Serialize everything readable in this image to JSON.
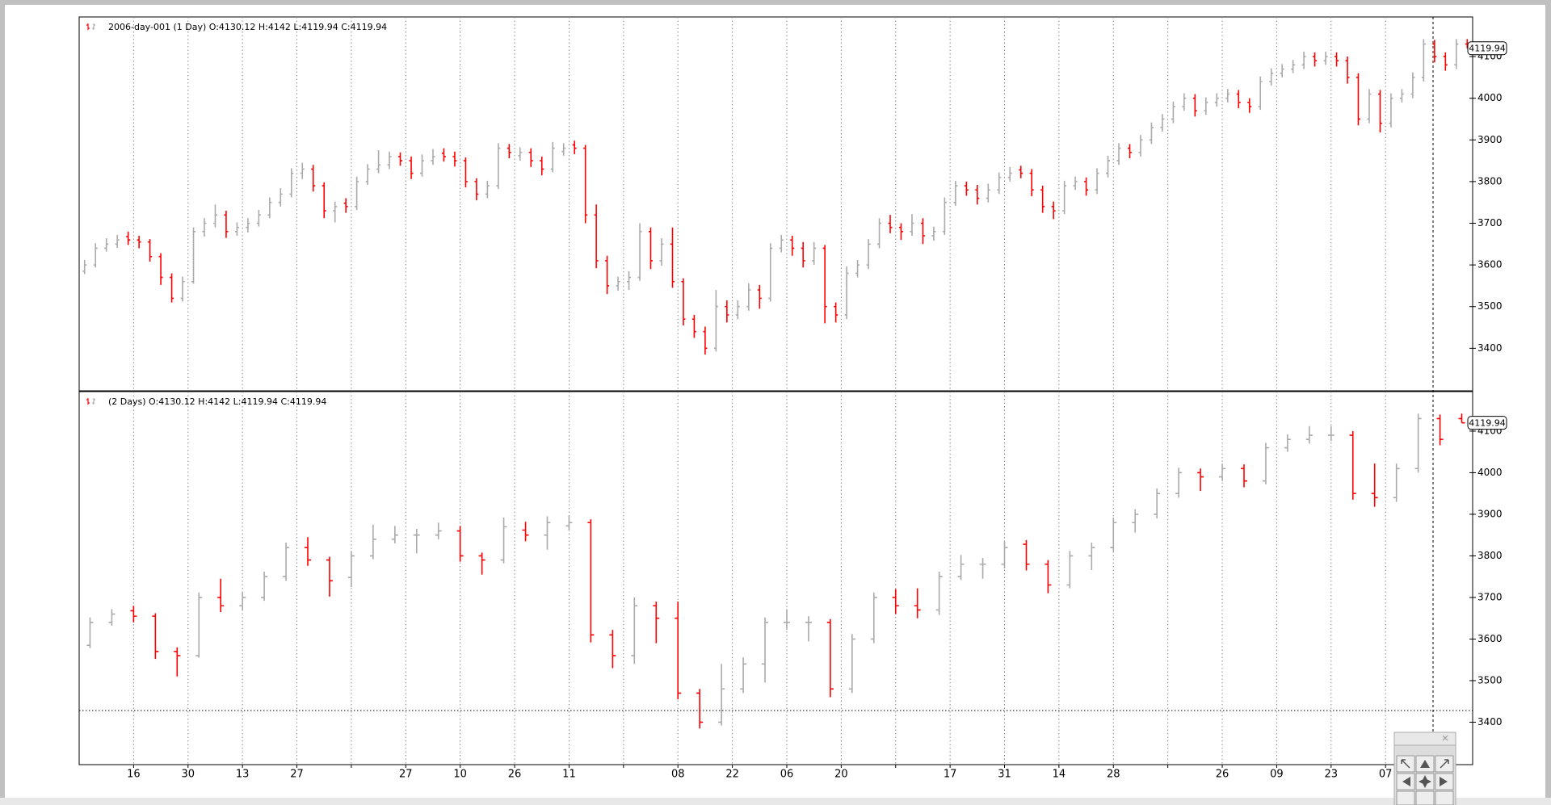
{
  "chart_data": [
    {
      "type": "ohlc",
      "legend": "2006-day-001 (1 Day) O:4130.12 H:4142 L:4119.94 C:4119.94",
      "up_color": "#aaaaaa",
      "down_color": "#ff0000",
      "xlim": [
        0,
        128
      ],
      "xticks": [
        5,
        10,
        15,
        20,
        25,
        30,
        35,
        40,
        45,
        50,
        55,
        60,
        65,
        70,
        75,
        80,
        85,
        90,
        95,
        100,
        105,
        110,
        115,
        120
      ],
      "xgrid": true,
      "ylim": [
        3298,
        4195
      ],
      "yticks": [
        3400,
        3500,
        3600,
        3700,
        3800,
        3900,
        4000,
        4100
      ],
      "ohlc": [
        [
          3585,
          3612,
          3578,
          3600
        ],
        [
          3600,
          3652,
          3594,
          3640
        ],
        [
          3640,
          3664,
          3632,
          3650
        ],
        [
          3650,
          3672,
          3641,
          3660
        ],
        [
          3668,
          3680,
          3648,
          3660
        ],
        [
          3660,
          3670,
          3640,
          3655
        ],
        [
          3655,
          3662,
          3608,
          3620
        ],
        [
          3620,
          3628,
          3552,
          3570
        ],
        [
          3570,
          3580,
          3510,
          3520
        ],
        [
          3520,
          3572,
          3512,
          3560
        ],
        [
          3560,
          3690,
          3555,
          3680
        ],
        [
          3680,
          3712,
          3668,
          3700
        ],
        [
          3700,
          3745,
          3690,
          3720
        ],
        [
          3720,
          3730,
          3665,
          3680
        ],
        [
          3680,
          3702,
          3670,
          3690
        ],
        [
          3690,
          3712,
          3678,
          3700
        ],
        [
          3700,
          3732,
          3692,
          3720
        ],
        [
          3720,
          3762,
          3712,
          3750
        ],
        [
          3750,
          3784,
          3740,
          3770
        ],
        [
          3770,
          3832,
          3762,
          3820
        ],
        [
          3820,
          3845,
          3806,
          3830
        ],
        [
          3830,
          3840,
          3776,
          3790
        ],
        [
          3790,
          3798,
          3712,
          3730
        ],
        [
          3730,
          3752,
          3702,
          3740
        ],
        [
          3748,
          3760,
          3725,
          3740
        ],
        [
          3740,
          3812,
          3732,
          3800
        ],
        [
          3800,
          3842,
          3792,
          3830
        ],
        [
          3830,
          3875,
          3820,
          3840
        ],
        [
          3840,
          3872,
          3830,
          3860
        ],
        [
          3860,
          3870,
          3838,
          3850
        ],
        [
          3850,
          3860,
          3806,
          3820
        ],
        [
          3820,
          3865,
          3812,
          3850
        ],
        [
          3850,
          3878,
          3840,
          3860
        ],
        [
          3868,
          3880,
          3848,
          3860
        ],
        [
          3860,
          3872,
          3836,
          3850
        ],
        [
          3850,
          3858,
          3786,
          3800
        ],
        [
          3800,
          3808,
          3755,
          3770
        ],
        [
          3770,
          3802,
          3760,
          3790
        ],
        [
          3790,
          3892,
          3782,
          3880
        ],
        [
          3880,
          3890,
          3856,
          3870
        ],
        [
          3862,
          3882,
          3850,
          3870
        ],
        [
          3870,
          3880,
          3835,
          3850
        ],
        [
          3850,
          3860,
          3815,
          3830
        ],
        [
          3830,
          3895,
          3822,
          3880
        ],
        [
          3872,
          3892,
          3862,
          3880
        ],
        [
          3888,
          3898,
          3866,
          3880
        ],
        [
          3880,
          3888,
          3700,
          3720
        ],
        [
          3720,
          3745,
          3592,
          3610
        ],
        [
          3610,
          3622,
          3530,
          3550
        ],
        [
          3550,
          3572,
          3538,
          3560
        ],
        [
          3560,
          3585,
          3540,
          3570
        ],
        [
          3570,
          3700,
          3562,
          3680
        ],
        [
          3680,
          3690,
          3590,
          3610
        ],
        [
          3610,
          3664,
          3598,
          3650
        ],
        [
          3650,
          3690,
          3545,
          3560
        ],
        [
          3560,
          3568,
          3455,
          3470
        ],
        [
          3470,
          3480,
          3425,
          3440
        ],
        [
          3440,
          3452,
          3385,
          3400
        ],
        [
          3400,
          3540,
          3392,
          3500
        ],
        [
          3500,
          3515,
          3462,
          3480
        ],
        [
          3480,
          3515,
          3470,
          3500
        ],
        [
          3500,
          3556,
          3490,
          3540
        ],
        [
          3540,
          3552,
          3495,
          3520
        ],
        [
          3520,
          3652,
          3512,
          3640
        ],
        [
          3640,
          3672,
          3630,
          3660
        ],
        [
          3660,
          3670,
          3622,
          3640
        ],
        [
          3640,
          3655,
          3594,
          3610
        ],
        [
          3610,
          3655,
          3600,
          3640
        ],
        [
          3640,
          3648,
          3460,
          3500
        ],
        [
          3500,
          3510,
          3462,
          3480
        ],
        [
          3480,
          3596,
          3470,
          3580
        ],
        [
          3580,
          3612,
          3570,
          3600
        ],
        [
          3600,
          3662,
          3590,
          3650
        ],
        [
          3650,
          3712,
          3640,
          3700
        ],
        [
          3700,
          3720,
          3676,
          3690
        ],
        [
          3690,
          3700,
          3660,
          3680
        ],
        [
          3680,
          3722,
          3670,
          3700
        ],
        [
          3700,
          3712,
          3650,
          3670
        ],
        [
          3670,
          3692,
          3658,
          3680
        ],
        [
          3680,
          3762,
          3672,
          3750
        ],
        [
          3750,
          3802,
          3742,
          3790
        ],
        [
          3790,
          3800,
          3766,
          3780
        ],
        [
          3780,
          3792,
          3745,
          3760
        ],
        [
          3760,
          3795,
          3750,
          3780
        ],
        [
          3780,
          3822,
          3770,
          3810
        ],
        [
          3810,
          3835,
          3800,
          3820
        ],
        [
          3828,
          3838,
          3808,
          3820
        ],
        [
          3820,
          3830,
          3765,
          3780
        ],
        [
          3780,
          3790,
          3725,
          3740
        ],
        [
          3740,
          3752,
          3710,
          3730
        ],
        [
          3730,
          3802,
          3722,
          3790
        ],
        [
          3790,
          3812,
          3780,
          3800
        ],
        [
          3800,
          3810,
          3766,
          3780
        ],
        [
          3780,
          3832,
          3770,
          3820
        ],
        [
          3820,
          3862,
          3810,
          3850
        ],
        [
          3850,
          3892,
          3840,
          3880
        ],
        [
          3880,
          3890,
          3856,
          3870
        ],
        [
          3870,
          3912,
          3860,
          3900
        ],
        [
          3900,
          3942,
          3890,
          3930
        ],
        [
          3930,
          3962,
          3920,
          3950
        ],
        [
          3950,
          3992,
          3940,
          3980
        ],
        [
          3980,
          4012,
          3970,
          4000
        ],
        [
          4000,
          4010,
          3956,
          3970
        ],
        [
          3970,
          4002,
          3960,
          3990
        ],
        [
          3990,
          4012,
          3980,
          4000
        ],
        [
          4000,
          4022,
          3990,
          4010
        ],
        [
          4010,
          4020,
          3976,
          3990
        ],
        [
          3990,
          4000,
          3965,
          3980
        ],
        [
          3980,
          4052,
          3972,
          4040
        ],
        [
          4040,
          4072,
          4030,
          4060
        ],
        [
          4060,
          4082,
          4050,
          4070
        ],
        [
          4070,
          4092,
          4060,
          4080
        ],
        [
          4080,
          4112,
          4070,
          4100
        ],
        [
          4100,
          4110,
          4076,
          4090
        ],
        [
          4090,
          4112,
          4080,
          4100
        ],
        [
          4100,
          4110,
          4076,
          4090
        ],
        [
          4090,
          4100,
          4035,
          4050
        ],
        [
          4050,
          4060,
          3935,
          3950
        ],
        [
          3950,
          4022,
          3940,
          4010
        ],
        [
          4010,
          4020,
          3918,
          3940
        ],
        [
          3940,
          4012,
          3930,
          4000
        ],
        [
          4000,
          4022,
          3990,
          4010
        ],
        [
          4010,
          4062,
          4000,
          4050
        ],
        [
          4050,
          4142,
          4040,
          4130
        ],
        [
          4130,
          4140,
          4086,
          4100
        ],
        [
          4100,
          4110,
          4066,
          4080
        ],
        [
          4080,
          4142,
          4070,
          4130
        ],
        [
          4130.12,
          4142,
          4119.94,
          4119.94
        ]
      ]
    },
    {
      "type": "ohlc",
      "legend": "(2 Days) O:4130.12 H:4142 L:4119.94 C:4119.94",
      "up_color": "#aaaaaa",
      "down_color": "#ff0000",
      "xlim": [
        0,
        64
      ],
      "xgrid": true,
      "xticks": [
        {
          "value": 2.5,
          "label": "16"
        },
        {
          "value": 5,
          "label": "30"
        },
        {
          "value": 7.5,
          "label": "13"
        },
        {
          "value": 10,
          "label": "27"
        },
        {
          "value": 12.5,
          "label": null
        },
        {
          "value": 15,
          "label": "27"
        },
        {
          "value": 17.5,
          "label": "10"
        },
        {
          "value": 20,
          "label": "26"
        },
        {
          "value": 22.5,
          "label": "11"
        },
        {
          "value": 25,
          "label": null
        },
        {
          "value": 27.5,
          "label": "08"
        },
        {
          "value": 30,
          "label": "22"
        },
        {
          "value": 32.5,
          "label": "06"
        },
        {
          "value": 35,
          "label": "20"
        },
        {
          "value": 37.5,
          "label": null
        },
        {
          "value": 40,
          "label": "17"
        },
        {
          "value": 42.5,
          "label": "31"
        },
        {
          "value": 45,
          "label": "14"
        },
        {
          "value": 47.5,
          "label": "28"
        },
        {
          "value": 50,
          "label": null
        },
        {
          "value": 52.5,
          "label": "26"
        },
        {
          "value": 55,
          "label": "09"
        },
        {
          "value": 57.5,
          "label": "23"
        },
        {
          "value": 60,
          "label": "07"
        }
      ],
      "ylim": [
        3298,
        4195
      ],
      "yticks": [
        3400,
        3500,
        3600,
        3700,
        3800,
        3900,
        4000,
        4100
      ],
      "ohlc": [
        [
          3585,
          3652,
          3578,
          3640
        ],
        [
          3640,
          3672,
          3632,
          3660
        ],
        [
          3668,
          3680,
          3640,
          3655
        ],
        [
          3655,
          3662,
          3552,
          3570
        ],
        [
          3570,
          3580,
          3510,
          3560
        ],
        [
          3560,
          3712,
          3555,
          3700
        ],
        [
          3700,
          3745,
          3665,
          3680
        ],
        [
          3680,
          3712,
          3670,
          3700
        ],
        [
          3700,
          3762,
          3692,
          3750
        ],
        [
          3750,
          3832,
          3740,
          3820
        ],
        [
          3820,
          3845,
          3776,
          3790
        ],
        [
          3790,
          3798,
          3702,
          3740
        ],
        [
          3748,
          3812,
          3725,
          3800
        ],
        [
          3800,
          3875,
          3792,
          3840
        ],
        [
          3840,
          3872,
          3830,
          3850
        ],
        [
          3850,
          3865,
          3806,
          3850
        ],
        [
          3850,
          3880,
          3840,
          3860
        ],
        [
          3860,
          3872,
          3786,
          3800
        ],
        [
          3800,
          3808,
          3755,
          3790
        ],
        [
          3790,
          3892,
          3782,
          3870
        ],
        [
          3862,
          3882,
          3835,
          3850
        ],
        [
          3850,
          3895,
          3815,
          3880
        ],
        [
          3872,
          3898,
          3862,
          3880
        ],
        [
          3880,
          3888,
          3592,
          3610
        ],
        [
          3610,
          3622,
          3530,
          3560
        ],
        [
          3560,
          3700,
          3540,
          3680
        ],
        [
          3680,
          3690,
          3590,
          3650
        ],
        [
          3650,
          3690,
          3455,
          3470
        ],
        [
          3470,
          3480,
          3385,
          3400
        ],
        [
          3400,
          3540,
          3392,
          3480
        ],
        [
          3480,
          3556,
          3470,
          3540
        ],
        [
          3540,
          3652,
          3495,
          3640
        ],
        [
          3640,
          3672,
          3622,
          3640
        ],
        [
          3640,
          3655,
          3594,
          3640
        ],
        [
          3640,
          3648,
          3460,
          3480
        ],
        [
          3480,
          3612,
          3470,
          3600
        ],
        [
          3600,
          3712,
          3590,
          3700
        ],
        [
          3700,
          3720,
          3660,
          3680
        ],
        [
          3680,
          3722,
          3650,
          3670
        ],
        [
          3670,
          3762,
          3658,
          3750
        ],
        [
          3750,
          3802,
          3742,
          3780
        ],
        [
          3780,
          3795,
          3745,
          3780
        ],
        [
          3780,
          3835,
          3770,
          3820
        ],
        [
          3828,
          3838,
          3765,
          3780
        ],
        [
          3780,
          3790,
          3710,
          3730
        ],
        [
          3730,
          3812,
          3722,
          3800
        ],
        [
          3800,
          3832,
          3766,
          3820
        ],
        [
          3820,
          3892,
          3810,
          3880
        ],
        [
          3880,
          3912,
          3856,
          3900
        ],
        [
          3900,
          3962,
          3890,
          3950
        ],
        [
          3950,
          4012,
          3940,
          4000
        ],
        [
          4000,
          4010,
          3956,
          3990
        ],
        [
          3990,
          4022,
          3980,
          4010
        ],
        [
          4010,
          4020,
          3965,
          3980
        ],
        [
          3980,
          4072,
          3972,
          4060
        ],
        [
          4060,
          4092,
          4050,
          4080
        ],
        [
          4080,
          4112,
          4070,
          4090
        ],
        [
          4090,
          4112,
          4076,
          4090
        ],
        [
          4090,
          4100,
          3935,
          3950
        ],
        [
          3950,
          4022,
          3918,
          3940
        ],
        [
          3940,
          4022,
          3930,
          4010
        ],
        [
          4010,
          4142,
          4000,
          4130
        ],
        [
          4130,
          4140,
          4066,
          4080
        ],
        [
          4130.12,
          4142,
          4119.94,
          4119.94
        ]
      ]
    }
  ]
}
